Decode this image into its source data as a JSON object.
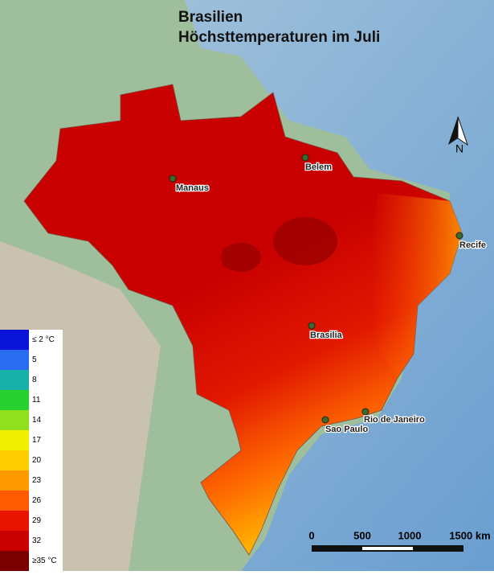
{
  "title": {
    "line1": "Brasilien",
    "line2": "Höchsttemperaturen im Juli"
  },
  "cities": [
    {
      "label": "Manaus"
    },
    {
      "label": "Belem"
    },
    {
      "label": "Recife"
    },
    {
      "label": "Brasilia"
    },
    {
      "label": "Rio de Janeiro"
    },
    {
      "label": "Sao Paulo"
    }
  ],
  "legend": [
    {
      "label": "≤ 2 °C",
      "color": "#0a14d8"
    },
    {
      "label": "5",
      "color": "#2a6cf0"
    },
    {
      "label": "8",
      "color": "#18b0a8"
    },
    {
      "label": "11",
      "color": "#28d030"
    },
    {
      "label": "14",
      "color": "#90e020"
    },
    {
      "label": "17",
      "color": "#f0f000"
    },
    {
      "label": "20",
      "color": "#ffcc00"
    },
    {
      "label": "23",
      "color": "#ff9900"
    },
    {
      "label": "26",
      "color": "#ff5a00"
    },
    {
      "label": "29",
      "color": "#e81400"
    },
    {
      "label": "32",
      "color": "#c80000"
    },
    {
      "label": "≥35 °C",
      "color": "#7a0000"
    }
  ],
  "north": "N",
  "scale": [
    "0",
    "500",
    "1000",
    "1500 km"
  ]
}
